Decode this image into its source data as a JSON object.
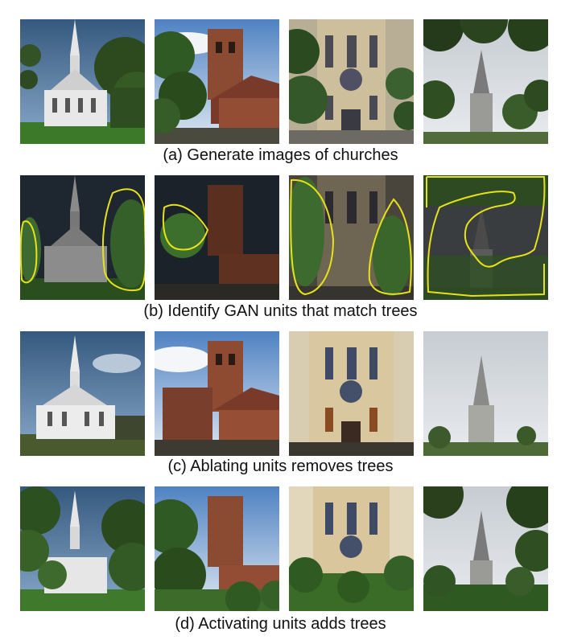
{
  "rows": [
    {
      "caption": "(a) Generate images of churches"
    },
    {
      "caption": "(b) Identify GAN units that match trees"
    },
    {
      "caption": "(c) Ablating units removes trees"
    },
    {
      "caption": "(d) Activating units adds trees"
    }
  ]
}
